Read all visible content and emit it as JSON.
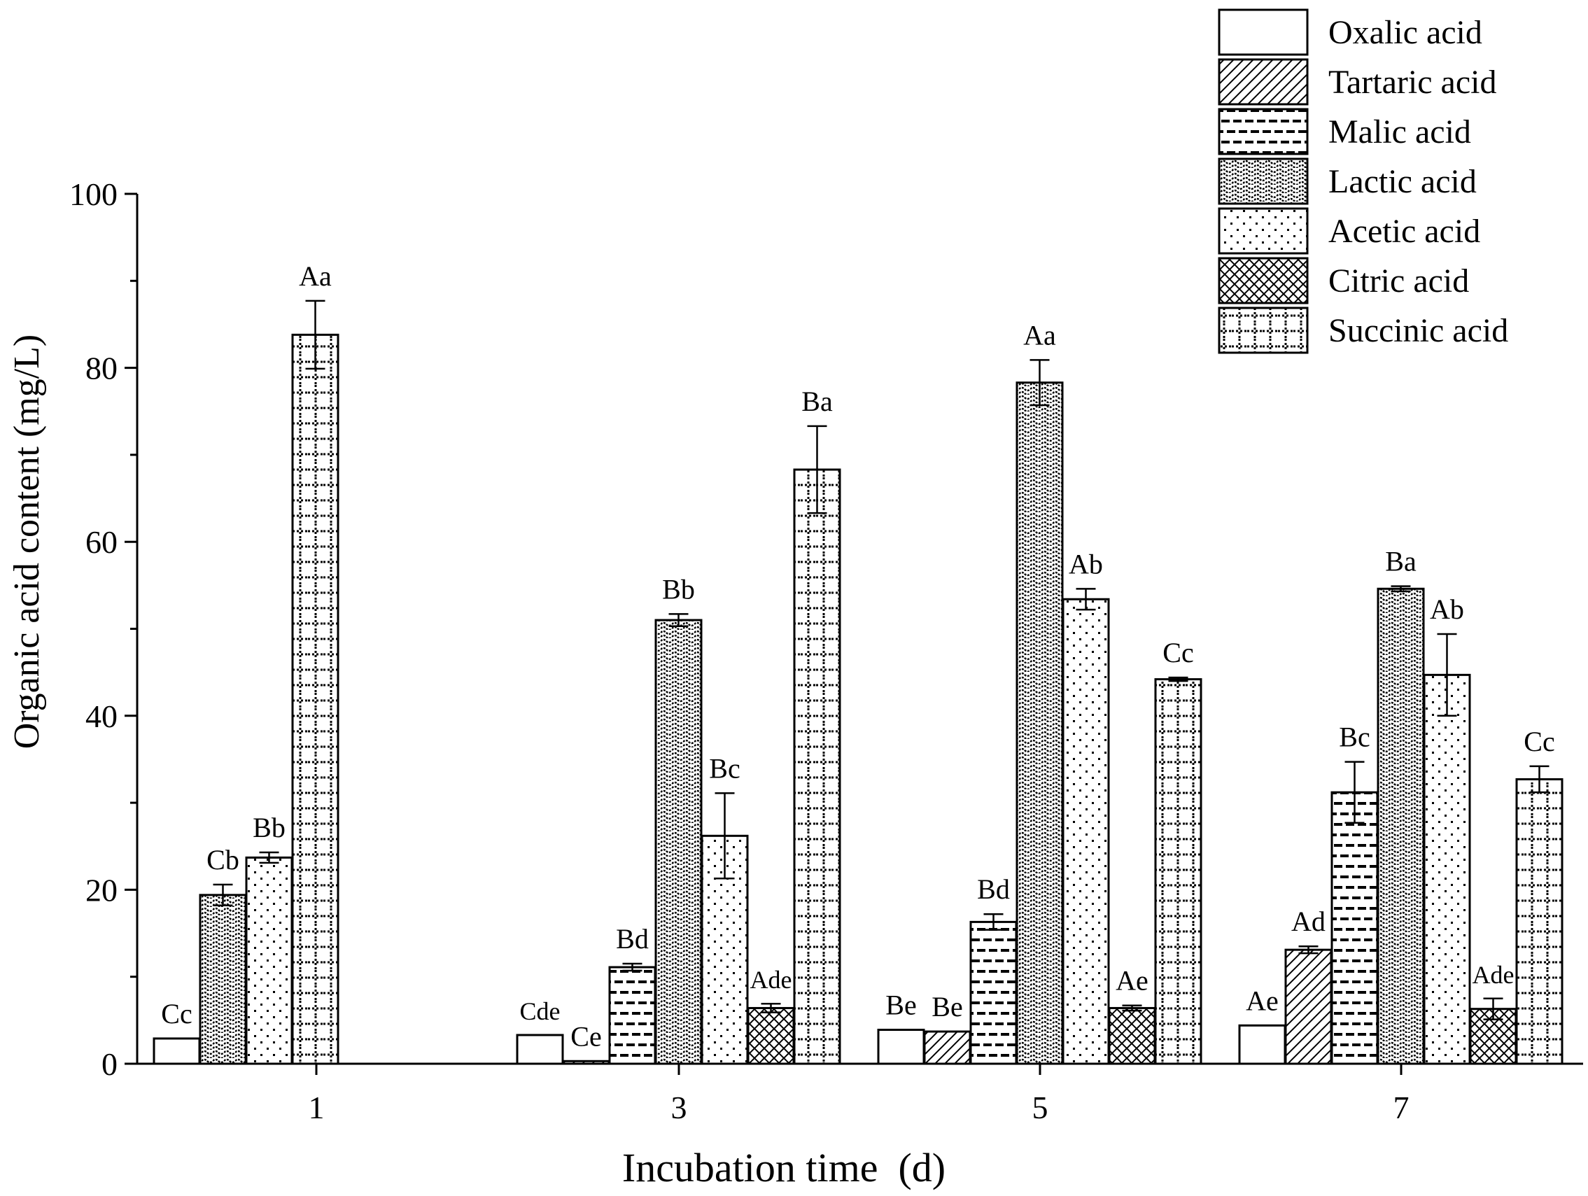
{
  "chart_data": {
    "type": "bar",
    "title": "",
    "xlabel": "Incubation time  (d)",
    "ylabel": "Organic acid content (mg/L)",
    "ylim": [
      0,
      100
    ],
    "yticks": [
      "0",
      "20",
      "40",
      "60",
      "80",
      "100"
    ],
    "categories": [
      "1",
      "3",
      "5",
      "7"
    ],
    "legend_position": "top-right",
    "series": [
      {
        "name": "Oxalic acid",
        "pattern": "plain",
        "values": [
          2.9,
          3.3,
          3.9,
          4.4
        ],
        "errors": [
          0,
          0,
          0,
          0
        ],
        "labels": [
          "Cc",
          "Cde",
          "Be",
          "Ae"
        ]
      },
      {
        "name": "Tartaric acid",
        "pattern": "diag",
        "values": [
          null,
          0.3,
          3.7,
          13.1
        ],
        "errors": [
          null,
          0,
          0,
          0.4
        ],
        "labels": [
          "",
          "Ce",
          "Be",
          "Ad"
        ]
      },
      {
        "name": "Malic acid",
        "pattern": "dash",
        "values": [
          null,
          11.1,
          16.3,
          31.2
        ],
        "errors": [
          null,
          0.4,
          0.9,
          3.5
        ],
        "labels": [
          "",
          "Bd",
          "Bd",
          "Bc"
        ]
      },
      {
        "name": "Lactic acid",
        "pattern": "wave",
        "values": [
          19.4,
          51.0,
          78.3,
          54.6
        ],
        "errors": [
          1.2,
          0.7,
          2.6,
          0.3
        ],
        "labels": [
          "Cb",
          "Bb",
          "Aa",
          "Ba"
        ]
      },
      {
        "name": "Acetic acid",
        "pattern": "dots",
        "values": [
          23.7,
          26.2,
          53.4,
          44.7
        ],
        "errors": [
          0.6,
          4.9,
          1.2,
          4.7
        ],
        "labels": [
          "Bb",
          "Bc",
          "Ab",
          "Ab"
        ]
      },
      {
        "name": "Citric acid",
        "pattern": "cross",
        "values": [
          null,
          6.4,
          6.4,
          6.3
        ],
        "errors": [
          null,
          0.5,
          0.3,
          1.2
        ],
        "labels": [
          "",
          "Ade",
          "Ae",
          "Ade"
        ]
      },
      {
        "name": "Succinic acid",
        "pattern": "grid",
        "values": [
          83.8,
          68.3,
          44.2,
          32.7
        ],
        "errors": [
          3.9,
          5.0,
          0.2,
          1.5
        ],
        "labels": [
          "Aa",
          "Ba",
          "Cc",
          "Cc"
        ]
      }
    ]
  }
}
